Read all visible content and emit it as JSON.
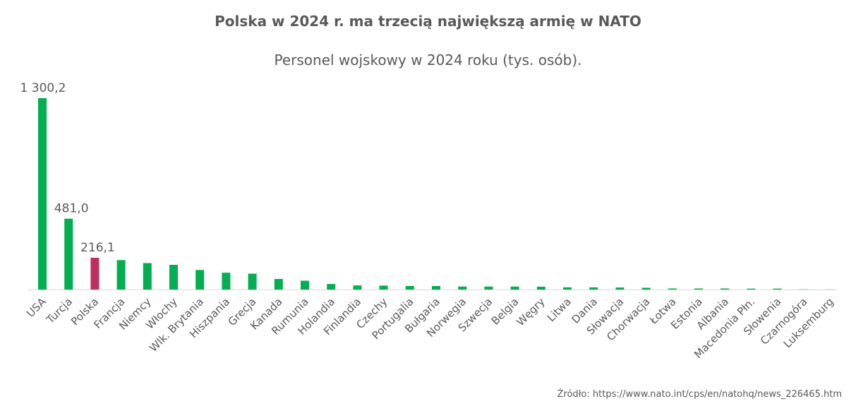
{
  "chart_data": {
    "type": "bar",
    "title": "Polska w 2024 r. ma trzecią największą armię w NATO",
    "subtitle": "Personel wojskowy w 2024 roku (tys. osób).",
    "xlabel": "",
    "ylabel": "",
    "ylim": [
      0,
      1300.2
    ],
    "grid": false,
    "legend": "none",
    "unit": "tys. osób",
    "colors": {
      "default": "#00b050",
      "highlight": "#be2e5e",
      "axis": "#d9d9d9",
      "text": "#595959"
    },
    "highlight_category": "Polska",
    "categories": [
      "USA",
      "Turcja",
      "Polska",
      "Francja",
      "Niemcy",
      "Włochy",
      "Wlk. Brytania",
      "Hiszpania",
      "Grecja",
      "Kanada",
      "Rumunia",
      "Holandia",
      "Finlandia",
      "Czechy",
      "Portugalia",
      "Bułgaria",
      "Norwegia",
      "Szwecja",
      "Belgia",
      "Węgry",
      "Litwa",
      "Dania",
      "Słowacja",
      "Chorwacja",
      "Łotwa",
      "Estonia",
      "Albania",
      "Macedonia Płn.",
      "Słowenia",
      "Czarnogóra",
      "Luksemburg"
    ],
    "values": [
      1300.2,
      481.0,
      216.1,
      200.0,
      180.0,
      168.0,
      133.0,
      114.0,
      108.0,
      72.0,
      60.0,
      38.0,
      28.0,
      27.0,
      24.0,
      24.0,
      20.0,
      20.0,
      20.0,
      19.0,
      15.0,
      15.0,
      14.0,
      12.0,
      7.0,
      7.0,
      7.0,
      6.0,
      6.0,
      1.5,
      1.0
    ],
    "data_labels": [
      {
        "category": "USA",
        "text": "1 300,2"
      },
      {
        "category": "Turcja",
        "text": "481,0"
      },
      {
        "category": "Polska",
        "text": "216,1"
      }
    ]
  },
  "source": "Źródło: https://www.nato.int/cps/en/natohq/news_226465.htm"
}
